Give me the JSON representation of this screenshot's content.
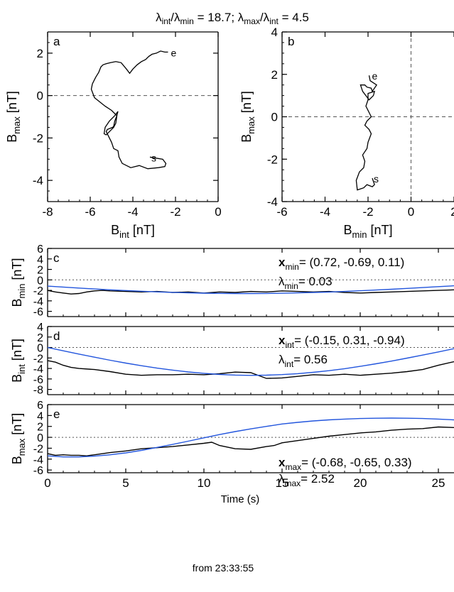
{
  "figure": {
    "header": {
      "lambda_int_over_min": "18.7",
      "lambda_max_over_int": "4.5"
    },
    "footer_line": "from 23:33:55"
  },
  "chart_data": [
    {
      "id": "a",
      "type": "line",
      "panel_label": "a",
      "xlabel_main": "B",
      "xlabel_sub": "int",
      "xlabel_unit": "[nT]",
      "ylabel_main": "B",
      "ylabel_sub": "max",
      "ylabel_unit": "[nT]",
      "xlim": [
        -8,
        0
      ],
      "ylim": [
        -5,
        3
      ],
      "xticks": [
        -8,
        -6,
        -4,
        -2,
        0
      ],
      "yticks": [
        -4,
        -2,
        0,
        2
      ],
      "start_label": "s",
      "end_label": "e",
      "start_point": [
        -3.2,
        -2.9
      ],
      "end_point": [
        -2.35,
        2.05
      ],
      "x": [
        -3.2,
        -2.6,
        -2.45,
        -2.5,
        -2.8,
        -3.3,
        -3.7,
        -4.1,
        -4.5,
        -4.65,
        -4.7,
        -4.9,
        -5.0,
        -5.1,
        -5.25,
        -5.2,
        -4.95,
        -4.9,
        -4.85,
        -4.75,
        -4.7,
        -4.85,
        -5.1,
        -5.3,
        -5.35,
        -5.25,
        -5.1,
        -4.9,
        -4.8,
        -4.75,
        -5.0,
        -5.3,
        -5.55,
        -5.8,
        -5.95,
        -5.9,
        -5.75,
        -5.6,
        -5.5,
        -5.4,
        -5.25,
        -5.05,
        -4.8,
        -4.55,
        -4.3,
        -4.15,
        -4.0,
        -3.8,
        -3.6,
        -3.4,
        -3.25,
        -3.1,
        -2.9,
        -2.7,
        -2.5,
        -2.35
      ],
      "y": [
        -2.9,
        -3.0,
        -3.2,
        -3.35,
        -3.4,
        -3.45,
        -3.3,
        -3.4,
        -3.2,
        -2.9,
        -2.6,
        -2.5,
        -2.2,
        -2.0,
        -1.7,
        -1.6,
        -1.5,
        -1.45,
        -1.2,
        -0.95,
        -0.75,
        -0.95,
        -1.2,
        -1.5,
        -1.8,
        -1.85,
        -1.7,
        -1.5,
        -1.3,
        -0.95,
        -0.7,
        -0.5,
        -0.3,
        -0.1,
        0.3,
        0.55,
        0.85,
        1.1,
        1.35,
        1.45,
        1.5,
        1.55,
        1.6,
        1.55,
        1.25,
        1.05,
        1.25,
        1.45,
        1.6,
        1.7,
        1.85,
        1.95,
        2.0,
        2.1,
        2.05,
        2.05
      ]
    },
    {
      "id": "b",
      "type": "line",
      "panel_label": "b",
      "xlabel_main": "B",
      "xlabel_sub": "min",
      "xlabel_unit": "[nT]",
      "ylabel_main": "B",
      "ylabel_sub": "max",
      "ylabel_unit": "[nT]",
      "xlim": [
        -6,
        2
      ],
      "ylim": [
        -4,
        4
      ],
      "xticks": [
        -6,
        -4,
        -2,
        0,
        2
      ],
      "yticks": [
        -4,
        -2,
        0,
        2,
        4
      ],
      "start_label": "s",
      "end_label": "e",
      "start_point": [
        -1.8,
        -2.9
      ],
      "end_point": [
        -1.95,
        1.95
      ],
      "x": [
        -1.8,
        -1.7,
        -1.8,
        -2.05,
        -2.2,
        -2.5,
        -2.55,
        -2.4,
        -2.2,
        -2.15,
        -2.25,
        -2.05,
        -2.0,
        -1.85,
        -1.95,
        -2.15,
        -2.05,
        -1.85,
        -1.95,
        -2.1,
        -2.0,
        -2.0,
        -1.7,
        -1.75,
        -1.95,
        -2.25,
        -2.35,
        -2.15,
        -2.05,
        -1.85,
        -1.8,
        -1.6,
        -1.9,
        -1.95
      ],
      "y": [
        -2.9,
        -3.2,
        -3.3,
        -3.2,
        -3.35,
        -3.45,
        -3.0,
        -2.6,
        -2.4,
        -2.1,
        -1.8,
        -1.5,
        -1.2,
        -0.8,
        -0.6,
        -0.4,
        -0.2,
        0.0,
        0.2,
        0.5,
        0.8,
        1.1,
        1.2,
        1.0,
        0.8,
        1.2,
        1.5,
        1.5,
        1.4,
        1.35,
        1.2,
        1.5,
        1.7,
        1.95
      ]
    },
    {
      "id": "c",
      "type": "line",
      "panel_label": "c",
      "ylabel_main": "B",
      "ylabel_sub": "min",
      "ylabel_unit": "[nT]",
      "xlim": [
        0,
        26
      ],
      "ylim": [
        -7,
        6
      ],
      "xticks": [
        0,
        5,
        10,
        15,
        20,
        25
      ],
      "yticks": [
        -6,
        -4,
        -2,
        0,
        2,
        4,
        6
      ],
      "vector_name": "x",
      "vector_sub": "min",
      "vector_value": "= (0.72, -0.69, 0.11)",
      "lambda_sub": "min",
      "lambda_value": "= 0.03",
      "series": [
        {
          "color": "#000000",
          "x": [
            0,
            0.5,
            1,
            1.5,
            2,
            2.5,
            3,
            3.5,
            4,
            5,
            6,
            7,
            8,
            9,
            10,
            11,
            12,
            13,
            14,
            15,
            16,
            17,
            18,
            19,
            20,
            21,
            22,
            23,
            24,
            25,
            26
          ],
          "y": [
            -2.0,
            -2.3,
            -2.5,
            -2.7,
            -2.6,
            -2.3,
            -2.1,
            -2.0,
            -2.1,
            -2.2,
            -2.3,
            -2.2,
            -2.4,
            -2.3,
            -2.5,
            -2.3,
            -2.4,
            -2.2,
            -2.3,
            -2.1,
            -2.2,
            -2.3,
            -2.2,
            -2.4,
            -2.5,
            -2.4,
            -2.3,
            -2.2,
            -2.1,
            -2.0,
            -1.9
          ]
        },
        {
          "color": "#2255dd",
          "x": [
            0,
            1,
            2,
            3,
            4,
            5,
            6,
            7,
            8,
            9,
            10,
            11,
            12,
            13,
            14,
            15,
            16,
            17,
            18,
            19,
            20,
            21,
            22,
            23,
            24,
            25,
            26
          ],
          "y": [
            -1.19,
            -1.37,
            -1.55,
            -1.73,
            -1.89,
            -2.03,
            -2.17,
            -2.29,
            -2.38,
            -2.47,
            -2.53,
            -2.57,
            -2.6,
            -2.6,
            -2.58,
            -2.54,
            -2.48,
            -2.4,
            -2.31,
            -2.2,
            -2.07,
            -1.93,
            -1.78,
            -1.62,
            -1.46,
            -1.29,
            -1.12
          ]
        }
      ]
    },
    {
      "id": "d",
      "type": "line",
      "panel_label": "d",
      "ylabel_main": "B",
      "ylabel_sub": "int",
      "ylabel_unit": "[nT]",
      "xlim": [
        0,
        26
      ],
      "ylim": [
        -9,
        4
      ],
      "xticks": [
        0,
        5,
        10,
        15,
        20,
        25
      ],
      "yticks": [
        -8,
        -6,
        -4,
        -2,
        0,
        2,
        4
      ],
      "vector_name": "x",
      "vector_sub": "int",
      "vector_value": "= (-0.15, 0.31, -0.94)",
      "lambda_sub": "int",
      "lambda_value": "= 0.56",
      "series": [
        {
          "color": "#000000",
          "x": [
            0,
            0.5,
            1,
            1.5,
            2,
            3,
            4,
            5,
            6,
            7,
            8,
            9,
            10,
            11,
            12,
            13,
            14,
            15,
            16,
            17,
            18,
            19,
            20,
            21,
            22,
            23,
            24,
            25,
            26
          ],
          "y": [
            -2.5,
            -2.8,
            -3.4,
            -3.8,
            -4.0,
            -4.2,
            -4.6,
            -5.1,
            -5.3,
            -5.2,
            -5.2,
            -5.1,
            -5.2,
            -5.0,
            -4.7,
            -4.8,
            -5.9,
            -5.8,
            -5.5,
            -5.2,
            -5.3,
            -5.1,
            -5.3,
            -5.1,
            -4.9,
            -4.6,
            -4.2,
            -3.4,
            -2.7
          ]
        },
        {
          "color": "#2255dd",
          "x": [
            0,
            1,
            2,
            3,
            4,
            5,
            6,
            7,
            8,
            9,
            10,
            11,
            12,
            13,
            14,
            15,
            16,
            17,
            18,
            19,
            20,
            21,
            22,
            23,
            24,
            25,
            26
          ],
          "y": [
            0.0,
            -0.63,
            -1.25,
            -1.85,
            -2.43,
            -2.97,
            -3.47,
            -3.93,
            -4.32,
            -4.66,
            -4.93,
            -5.14,
            -5.26,
            -5.31,
            -5.28,
            -5.17,
            -4.99,
            -4.74,
            -4.42,
            -4.04,
            -3.6,
            -3.11,
            -2.59,
            -2.03,
            -1.45,
            -0.85,
            -0.22
          ]
        }
      ]
    },
    {
      "id": "e",
      "type": "line",
      "panel_label": "e",
      "ylabel_main": "B",
      "ylabel_sub": "max",
      "ylabel_unit": "[nT]",
      "xlabel": "Time (s)",
      "xlim": [
        0,
        26
      ],
      "ylim": [
        -6.5,
        6
      ],
      "xticks": [
        0,
        5,
        10,
        15,
        20,
        25
      ],
      "yticks": [
        -6,
        -4,
        -2,
        0,
        2,
        4,
        6
      ],
      "vector_name": "x",
      "vector_sub": "max",
      "vector_value": "= (-0.68, -0.65, 0.33)",
      "lambda_sub": "max",
      "lambda_value": "= 2.52",
      "series": [
        {
          "color": "#000000",
          "x": [
            0,
            0.5,
            1,
            1.5,
            2,
            2.5,
            3,
            4,
            5,
            6,
            7,
            8,
            9,
            10,
            10.5,
            11,
            12,
            13,
            14,
            14.5,
            15,
            16,
            17,
            18,
            19,
            20,
            21,
            22,
            23,
            24,
            25,
            26
          ],
          "y": [
            -3.0,
            -3.3,
            -3.2,
            -3.3,
            -3.3,
            -3.4,
            -3.2,
            -2.8,
            -2.5,
            -2.1,
            -1.9,
            -1.7,
            -1.4,
            -1.1,
            -0.9,
            -1.5,
            -2.1,
            -2.2,
            -1.7,
            -1.5,
            -1.0,
            -0.6,
            -0.2,
            0.2,
            0.5,
            0.8,
            1.0,
            1.3,
            1.5,
            1.6,
            1.9,
            1.8
          ]
        },
        {
          "color": "#2255dd",
          "x": [
            0,
            1,
            2,
            3,
            4,
            5,
            6,
            7,
            8,
            9,
            10,
            11,
            12,
            13,
            14,
            15,
            16,
            17,
            18,
            19,
            20,
            21,
            22,
            23,
            24,
            25,
            26
          ],
          "y": [
            -3.4,
            -3.6,
            -3.6,
            -3.45,
            -3.2,
            -2.85,
            -2.4,
            -1.85,
            -1.3,
            -0.7,
            -0.1,
            0.5,
            1.05,
            1.55,
            2.0,
            2.45,
            2.75,
            3.0,
            3.2,
            3.35,
            3.45,
            3.5,
            3.52,
            3.5,
            3.45,
            3.35,
            3.2
          ]
        }
      ]
    }
  ]
}
